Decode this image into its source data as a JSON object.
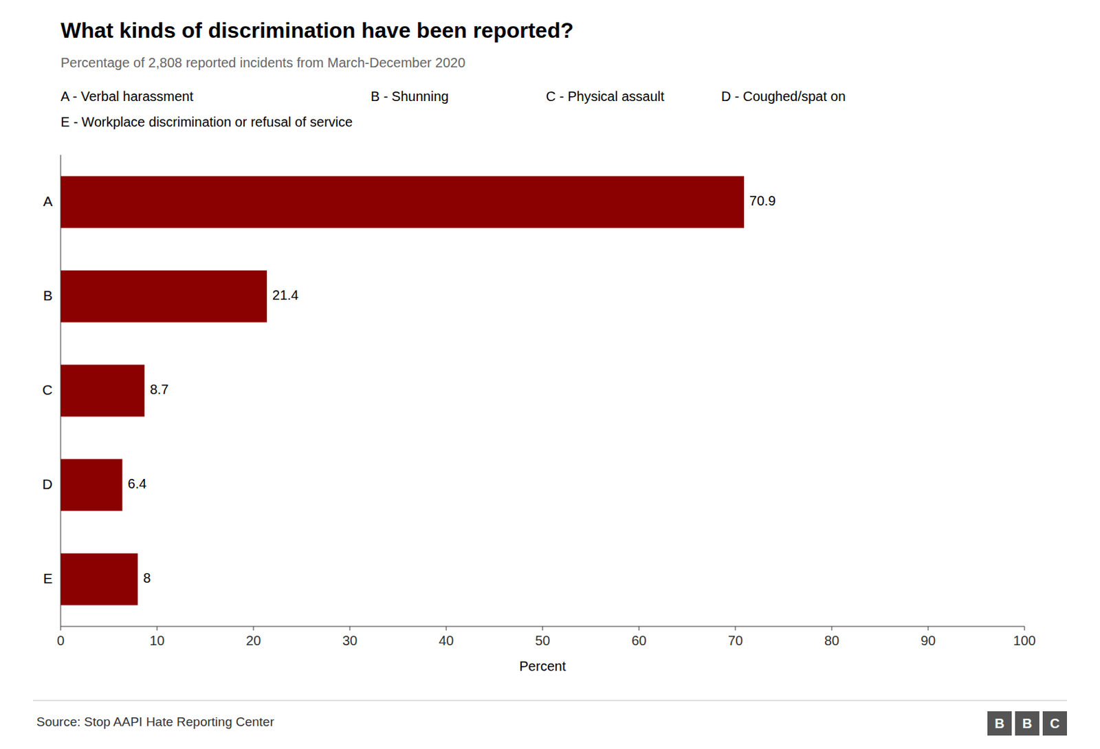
{
  "chart_data": {
    "type": "bar",
    "orientation": "horizontal",
    "title": "What kinds of discrimination have been reported?",
    "subtitle": "Percentage of 2,808 reported incidents from March-December 2020",
    "categories": [
      "A",
      "B",
      "C",
      "D",
      "E"
    ],
    "values": [
      70.9,
      21.4,
      8.7,
      6.4,
      8.0
    ],
    "value_labels": [
      "70.9",
      "21.4",
      "8.7",
      "6.4",
      "8"
    ],
    "data_labels": true,
    "color": "#8B0000",
    "xlabel": "Percent",
    "xlim": [
      0,
      100
    ],
    "xticks": [
      0,
      10,
      20,
      30,
      40,
      50,
      60,
      70,
      80,
      90,
      100
    ],
    "grid": false,
    "annotations": [
      [
        "A - Verbal harassment",
        "B - Shunning",
        "C - Physical assault",
        "D - Coughed/spat on"
      ],
      [
        "E - Workplace discrimination or refusal of service"
      ]
    ],
    "source": "Source: Stop AAPI Hate Reporting Center",
    "logo": [
      "B",
      "B",
      "C"
    ]
  }
}
